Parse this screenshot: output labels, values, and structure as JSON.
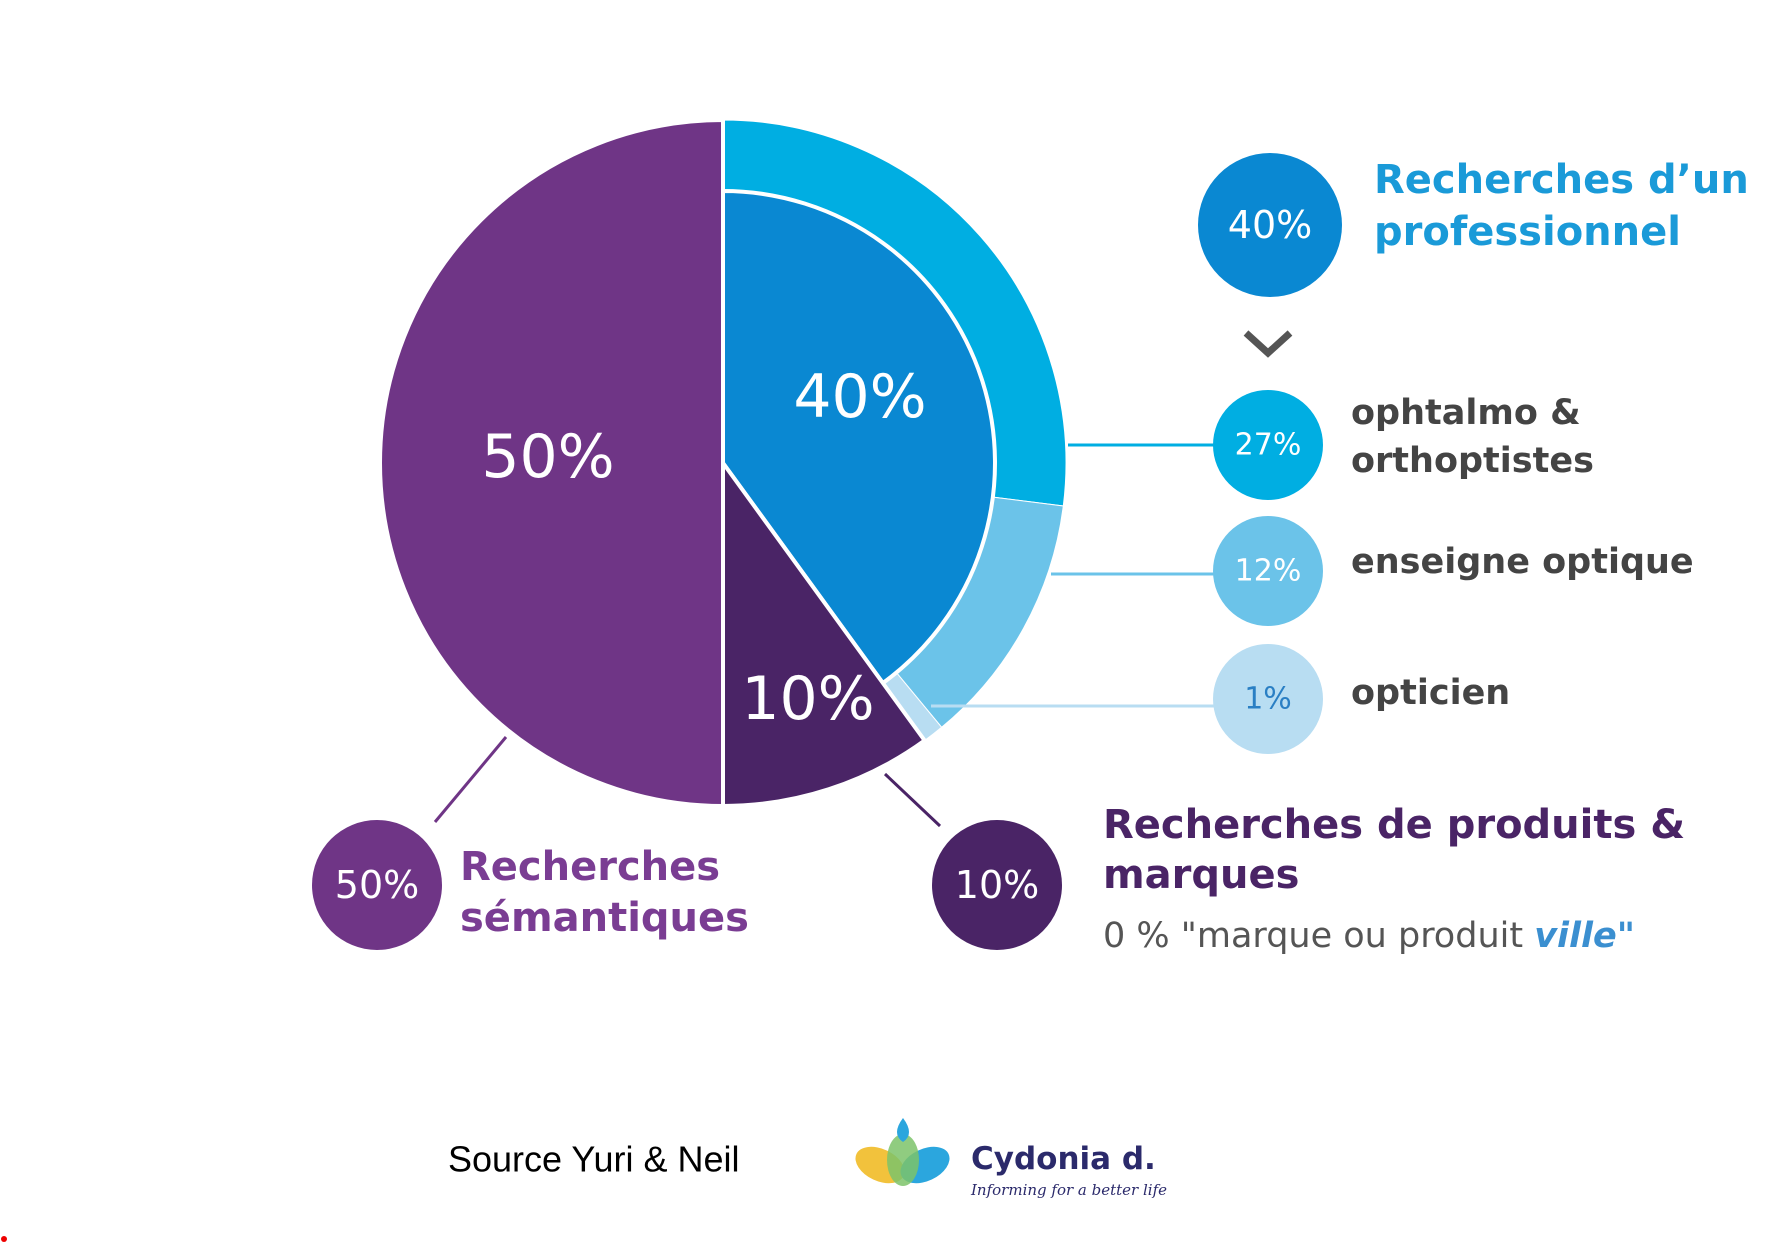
{
  "chart_data": {
    "type": "pie",
    "categories": [
      "Recherches d’un professionnel",
      "Recherches de produits & marques",
      "Recherches sémantiques"
    ],
    "values": [
      40,
      10,
      50
    ],
    "value_labels": [
      "40%",
      "10%",
      "50%"
    ],
    "colors": [
      "#0a88d2",
      "#4a2466",
      "#6f3586"
    ],
    "breakdown": {
      "categories": [
        "ophtalmo & orthoptistes",
        "enseigne optique",
        "opticien"
      ],
      "values": [
        27,
        12,
        1
      ],
      "value_labels": [
        "27%",
        "12%",
        "1%"
      ],
      "colors": [
        "#00aee2",
        "#6bc3e9",
        "#b8ddf2"
      ]
    },
    "annotation": [
      "0 % \"marque ou produit ",
      "ville\""
    ]
  },
  "footer": {
    "source": "Source Yuri & Neil",
    "logo_name": "Cydonia d.",
    "logo_tagline": "Informing for a better life"
  }
}
